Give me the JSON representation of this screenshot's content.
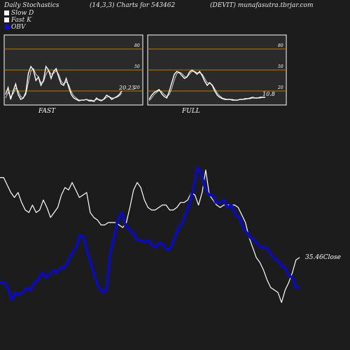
{
  "header": {
    "title": "Daily Stochastics",
    "params": "(14,3,3) Charts for 543462",
    "site": "(DEVIT) munafasutra.tbrjar.com"
  },
  "legend": [
    {
      "label": "Slow  D",
      "color": "#ffffff"
    },
    {
      "label": "Fast K",
      "color": "#ffffff"
    },
    {
      "label": "OBV",
      "color": "#1010c0"
    }
  ],
  "colors": {
    "background": "#1c1c1c",
    "panel": "#2a2a2a",
    "level_line": "#c07800",
    "price_line": "#ffffff",
    "obv_line": "#0c0cb4"
  },
  "chart_data": [
    {
      "type": "line",
      "name": "FAST",
      "levels": [
        80,
        50,
        20
      ],
      "last_value_label": "20.23",
      "ylim": [
        0,
        100
      ],
      "series": [
        {
          "values": [
            15,
            25,
            8,
            20,
            30,
            15,
            8,
            10,
            18,
            45,
            55,
            50,
            35,
            40,
            28,
            35,
            55,
            50,
            38,
            48,
            52,
            40,
            30,
            28,
            38,
            25,
            15,
            10,
            8,
            6,
            7,
            7,
            8,
            6,
            6,
            5,
            10,
            7,
            6,
            9,
            14,
            12,
            8,
            10,
            12,
            15,
            20
          ]
        },
        {
          "values": [
            10,
            18,
            12,
            16,
            24,
            20,
            12,
            10,
            15,
            32,
            48,
            52,
            44,
            40,
            32,
            33,
            44,
            50,
            44,
            45,
            49,
            44,
            34,
            30,
            33,
            29,
            19,
            13,
            10,
            7,
            7,
            7,
            8,
            7,
            7,
            6,
            8,
            8,
            7,
            8,
            11,
            12,
            10,
            10,
            11,
            13,
            17
          ]
        }
      ]
    },
    {
      "type": "line",
      "name": "FULL",
      "levels": [
        80,
        50,
        20
      ],
      "last_value_label": "10.8",
      "ylim": [
        0,
        100
      ],
      "series": [
        {
          "values": [
            8,
            14,
            18,
            20,
            22,
            16,
            12,
            10,
            20,
            32,
            44,
            48,
            46,
            42,
            38,
            40,
            47,
            50,
            47,
            44,
            48,
            42,
            34,
            28,
            32,
            28,
            20,
            14,
            11,
            9,
            8,
            8,
            8,
            7,
            7,
            7,
            8,
            8,
            9,
            9,
            10,
            11,
            10,
            10,
            11,
            11,
            11
          ]
        },
        {
          "values": [
            6,
            10,
            15,
            18,
            21,
            19,
            15,
            12,
            15,
            24,
            36,
            45,
            47,
            45,
            41,
            40,
            44,
            48,
            48,
            46,
            46,
            44,
            38,
            32,
            31,
            29,
            23,
            17,
            13,
            10,
            9,
            8,
            8,
            8,
            7,
            7,
            8,
            8,
            8,
            9,
            9,
            10,
            10,
            10,
            10,
            11,
            11
          ]
        }
      ]
    },
    {
      "type": "line",
      "name": "Price vs OBV",
      "series": [
        {
          "name": "Close",
          "values": [
            62,
            62,
            59,
            56,
            54,
            56,
            52,
            49,
            48,
            51,
            48,
            49,
            53,
            50,
            46,
            48,
            50,
            55,
            58,
            57,
            60,
            57,
            54,
            55,
            56,
            48,
            46,
            45,
            43,
            43,
            44,
            44,
            44,
            43,
            42,
            44,
            50,
            57,
            60,
            58,
            53,
            50,
            49,
            49,
            50,
            51,
            51,
            49,
            49,
            50,
            52,
            52,
            53,
            56,
            55,
            51,
            56,
            65,
            55,
            53,
            51,
            50,
            51,
            51,
            51,
            51,
            50,
            47,
            44,
            38,
            34,
            30,
            28,
            25,
            21,
            18,
            17,
            16,
            12,
            17,
            20,
            24,
            29,
            30
          ]
        },
        {
          "name": "OBV",
          "values": [
            20,
            20,
            18,
            13,
            16,
            15,
            16,
            18,
            17,
            20,
            21,
            24,
            22,
            23,
            25,
            24,
            26,
            26,
            29,
            32,
            34,
            39,
            38,
            32,
            27,
            22,
            18,
            16,
            17,
            32,
            38,
            45,
            48,
            43,
            41,
            40,
            37,
            37,
            36,
            37,
            35,
            34,
            36,
            35,
            33,
            34,
            38,
            42,
            44,
            48,
            52,
            58,
            66,
            64,
            58,
            55,
            55,
            52,
            52,
            53,
            50,
            51,
            47,
            46,
            42,
            40,
            38,
            37,
            35,
            34,
            34,
            32,
            30,
            29,
            27,
            26,
            23,
            22,
            18,
            18
          ]
        }
      ],
      "last_value_label": "35.46Close"
    }
  ]
}
